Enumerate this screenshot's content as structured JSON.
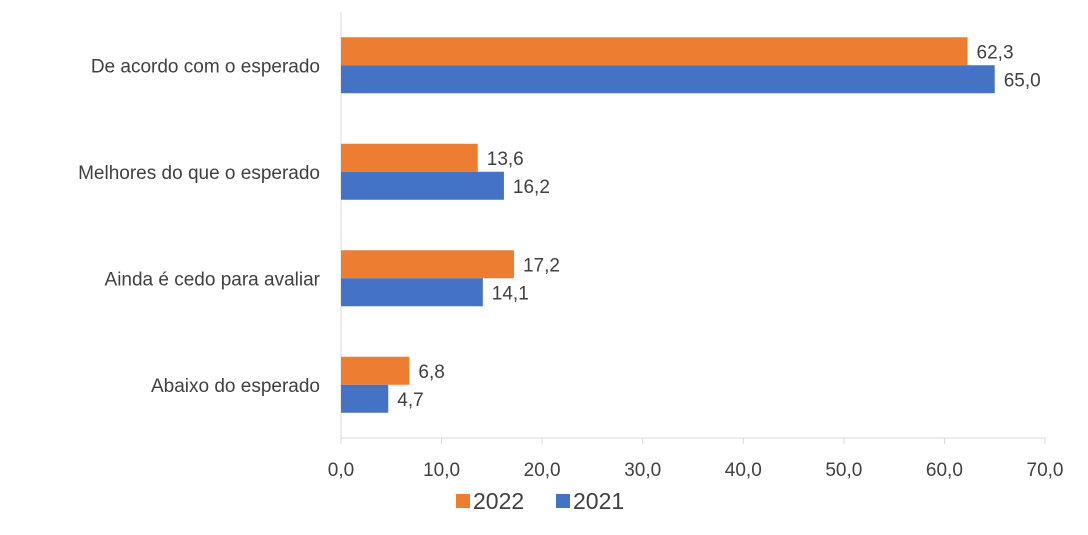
{
  "chart_data": {
    "type": "bar",
    "orientation": "horizontal",
    "categories": [
      "De acordo com o esperado",
      "Melhores do que o esperado",
      "Ainda é cedo para avaliar",
      "Abaixo do esperado"
    ],
    "series": [
      {
        "name": "2022",
        "color": "#ED7D31",
        "values": [
          62.3,
          13.6,
          17.2,
          6.8
        ],
        "labels": [
          "62,3",
          "13,6",
          "17,2",
          "6,8"
        ]
      },
      {
        "name": "2021",
        "color": "#4472C4",
        "values": [
          65.0,
          16.2,
          14.1,
          4.7
        ],
        "labels": [
          "65,0",
          "16,2",
          "14,1",
          "4,7"
        ]
      }
    ],
    "xlim": [
      0,
      70
    ],
    "ticks": [
      0,
      10,
      20,
      30,
      40,
      50,
      60,
      70
    ],
    "tick_labels": [
      "0,0",
      "10,0",
      "20,0",
      "30,0",
      "40,0",
      "50,0",
      "60,0",
      "70,0"
    ],
    "grid": false,
    "legend_position": "bottom",
    "title": "",
    "xlabel": "",
    "ylabel": ""
  }
}
